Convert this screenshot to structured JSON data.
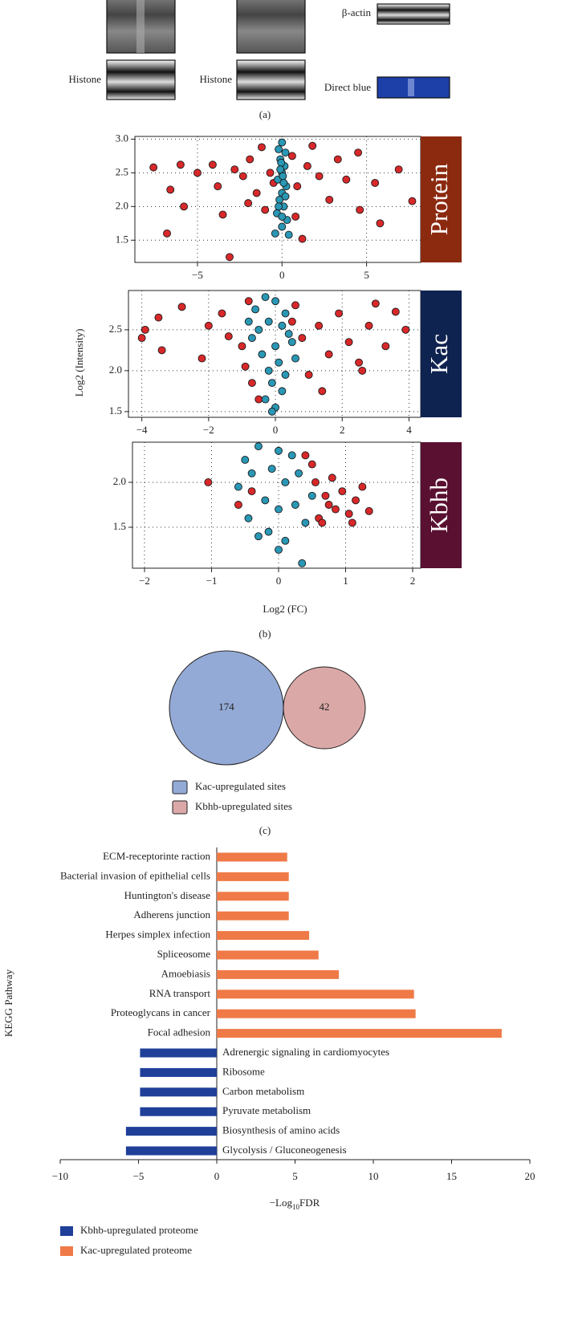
{
  "blots": {
    "labels": [
      "Histone",
      "Histone",
      "β-actin",
      "Direct blue"
    ],
    "caption": "(a)"
  },
  "captions": {
    "b": "(b)",
    "c": "(c)"
  },
  "chart_data": [
    {
      "type": "scatter",
      "label": "Protein",
      "label_color": "#8c2a10",
      "grid": true,
      "xlim": [
        -8.7,
        8.2
      ],
      "ylim": [
        1.17,
        3.04
      ],
      "xticks": [
        {
          "value": -5,
          "label": "−5"
        },
        0,
        5
      ],
      "yticks": [
        {
          "value": 1.5,
          "label": "1.5"
        },
        {
          "value": 2,
          "label": "2.0"
        },
        {
          "value": 2.5,
          "label": "2.5"
        },
        {
          "value": 3,
          "label": "3.0"
        }
      ],
      "series": [
        {
          "color": "#d8282a",
          "x": [
            -7.6,
            -6.8,
            -6.6,
            -6,
            -5.8,
            -5,
            -4.1,
            -3.8,
            -3.5,
            -3.1,
            -2.8,
            -2.3,
            -1.9,
            -1.5,
            -1.2,
            -1,
            -0.7,
            -0.5,
            0.6,
            0.9,
            1.2,
            1.5,
            2.2,
            2.8,
            3.3,
            4.5,
            4.6,
            5.5,
            6.9,
            7.7,
            5.8,
            1.8,
            -2,
            0.8,
            3.8
          ],
          "y": [
            2.58,
            1.6,
            2.25,
            2.62,
            2,
            2.5,
            2.62,
            2.3,
            1.88,
            1.25,
            2.55,
            2.45,
            2.7,
            2.2,
            2.88,
            1.95,
            2.5,
            2.35,
            2.75,
            2.3,
            1.52,
            2.6,
            2.45,
            2.1,
            2.7,
            2.8,
            1.95,
            2.35,
            2.55,
            2.08,
            1.75,
            2.9,
            2.05,
            1.85,
            2.4
          ]
        },
        {
          "color": "#2a97b5",
          "x": [
            0,
            -0.2,
            0.2,
            -0.1,
            0.15,
            0,
            -0.25,
            0.25,
            0,
            -0.15,
            0.1,
            -0.3,
            0.3,
            0,
            -0.4,
            0.4,
            0.05,
            -0.05,
            0.2,
            -0.2,
            0,
            0.1,
            -0.1
          ],
          "y": [
            2.95,
            2.85,
            2.8,
            2.7,
            2.6,
            2.5,
            2.4,
            2.3,
            2.2,
            2.1,
            2,
            1.9,
            1.8,
            1.7,
            1.6,
            1.58,
            2.45,
            2.65,
            2.15,
            2,
            1.85,
            2.35,
            2.55
          ]
        }
      ]
    },
    {
      "type": "scatter",
      "label": "Kac",
      "label_color": "#0f2350",
      "grid": true,
      "y_label": "Log2 (Intensity)",
      "xlim": [
        -4.4,
        4.35
      ],
      "ylim": [
        1.43,
        2.98
      ],
      "xticks": [
        {
          "value": -4,
          "label": "−4"
        },
        {
          "value": -2,
          "label": "−2"
        },
        0,
        2,
        4
      ],
      "yticks": [
        {
          "value": 1.5,
          "label": "1.5"
        },
        {
          "value": 2,
          "label": "2.0"
        },
        {
          "value": 2.5,
          "label": "2.5"
        }
      ],
      "series": [
        {
          "color": "#d8282a",
          "x": [
            -4,
            -3.9,
            -3.5,
            -3.4,
            -2.8,
            -2.2,
            -2,
            -1.6,
            -1.4,
            -1,
            -0.9,
            -0.8,
            -0.7,
            0.6,
            0.8,
            1,
            1.3,
            1.6,
            1.9,
            2.2,
            2.5,
            2.8,
            3,
            3.3,
            3.6,
            3.9,
            2.6,
            1.4,
            -0.5,
            0.5
          ],
          "y": [
            2.4,
            2.5,
            2.65,
            2.25,
            2.78,
            2.15,
            2.55,
            2.7,
            2.42,
            2.3,
            2.05,
            2.85,
            1.85,
            2.8,
            2.4,
            1.95,
            2.55,
            2.2,
            2.7,
            2.35,
            2.1,
            2.55,
            2.82,
            2.3,
            2.72,
            2.5,
            2,
            1.75,
            1.65,
            2.6
          ]
        },
        {
          "color": "#2a97b5",
          "x": [
            -0.6,
            -0.3,
            0,
            0.3,
            -0.5,
            0.2,
            0.5,
            -0.4,
            0.1,
            -0.2,
            0.3,
            -0.1,
            0.2,
            -0.3,
            0,
            -0.1,
            0.4,
            -0.7,
            -0.8,
            0.6,
            0,
            -0.2
          ],
          "y": [
            2.75,
            2.9,
            2.85,
            2.7,
            2.5,
            2.55,
            2.35,
            2.2,
            2.1,
            2,
            1.95,
            1.85,
            1.75,
            1.65,
            1.55,
            1.5,
            2.45,
            2.4,
            2.6,
            2.15,
            2.3,
            2.6
          ]
        }
      ]
    },
    {
      "type": "scatter",
      "label": "Kbhb",
      "label_color": "#5a1030",
      "grid": true,
      "x_label": "Log2 (FC)",
      "xlim": [
        -2.18,
        2.12
      ],
      "ylim": [
        1.045,
        2.446
      ],
      "xticks": [
        {
          "value": -2,
          "label": "−2"
        },
        {
          "value": -1,
          "label": "−1"
        },
        0,
        1,
        2
      ],
      "yticks": [
        {
          "value": 1.5,
          "label": "1.5"
        },
        {
          "value": 2,
          "label": "2.0"
        }
      ],
      "series": [
        {
          "color": "#d8282a",
          "x": [
            -1.05,
            -0.6,
            -0.4,
            0.4,
            0.55,
            0.6,
            0.7,
            0.8,
            0.85,
            0.95,
            1.05,
            1.15,
            1.25,
            1.35,
            0.5,
            0.65,
            1.1,
            0.75
          ],
          "y": [
            2,
            1.75,
            1.9,
            2.3,
            2,
            1.6,
            1.85,
            2.05,
            1.7,
            1.9,
            1.65,
            1.8,
            1.95,
            1.68,
            2.2,
            1.55,
            1.55,
            1.75
          ]
        },
        {
          "color": "#2a97b5",
          "x": [
            -0.5,
            -0.3,
            0,
            0.2,
            -0.6,
            -0.4,
            0.1,
            0.3,
            -0.2,
            0,
            0.25,
            -0.45,
            0.4,
            -0.15,
            0.1,
            0,
            0.35,
            -0.3,
            0.5,
            -0.1
          ],
          "y": [
            2.25,
            2.4,
            2.35,
            2.3,
            1.95,
            2.1,
            2,
            2.1,
            1.8,
            1.7,
            1.75,
            1.6,
            1.55,
            1.45,
            1.35,
            1.25,
            1.1,
            1.4,
            1.85,
            2.15
          ]
        }
      ]
    },
    {
      "type": "venn",
      "sets": [
        {
          "name": "Kac-upregulated sites",
          "value": 174,
          "color": "#94aad6"
        },
        {
          "name": "Kbhb-upregulated sites",
          "value": 42,
          "color": "#dba8a8"
        }
      ]
    },
    {
      "type": "bar",
      "y_label": "KEGG Pathway",
      "x_label": [
        "−Log",
        "10",
        "FDR"
      ],
      "xlim": [
        -10,
        20
      ],
      "xticks": [
        {
          "value": -10,
          "label": "−10"
        },
        {
          "value": -5,
          "label": "−5"
        },
        0,
        5,
        10,
        15,
        20
      ],
      "categories": [
        "ECM-receptorinte raction",
        "Bacterial invasion of epithelial cells",
        "Huntington's disease",
        "Adherens junction",
        "Herpes simplex infection",
        "Spliceosome",
        "Amoebiasis",
        "RNA transport",
        "Proteoglycans in cancer",
        "Focal adhesion",
        "Adrenergic signaling in cardiomyocytes",
        "Ribosome",
        "Carbon metabolism",
        "Pyruvate metabolism",
        "Biosynthesis of amino acids",
        "Glycolysis / Gluconeogenesis"
      ],
      "series": [
        {
          "name": "Kbhb-upregulated proteome",
          "color": "#1f3f99",
          "values": [
            null,
            null,
            null,
            null,
            null,
            null,
            null,
            null,
            null,
            null,
            -4.9,
            -4.9,
            -4.9,
            -4.9,
            -5.8,
            -5.8
          ]
        },
        {
          "name": "Kac-upregulated proteome",
          "color": "#ef7a47",
          "values": [
            4.5,
            4.6,
            4.6,
            4.6,
            5.9,
            6.5,
            7.8,
            12.6,
            12.7,
            18.2,
            null,
            null,
            null,
            null,
            null,
            null
          ]
        }
      ]
    }
  ]
}
